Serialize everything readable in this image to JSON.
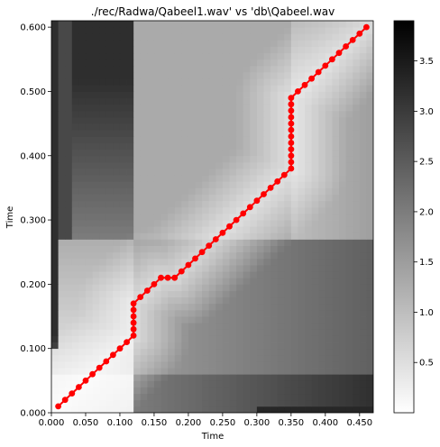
{
  "chart_data": {
    "type": "heatmap",
    "title": "./rec/Radwa/Qabeel1.wav' vs 'db\\Qabeel.wav",
    "xlabel": "Time",
    "ylabel": "Time",
    "xlim": [
      0,
      0.47
    ],
    "ylim": [
      0,
      0.61
    ],
    "xticks": [
      "0.000",
      "0.050",
      "0.100",
      "0.150",
      "0.200",
      "0.250",
      "0.300",
      "0.350",
      "0.400",
      "0.450"
    ],
    "xtick_values": [
      0,
      0.05,
      0.1,
      0.15,
      0.2,
      0.25,
      0.3,
      0.35,
      0.4,
      0.45
    ],
    "yticks": [
      "0.000",
      "0.100",
      "0.200",
      "0.300",
      "0.400",
      "0.500",
      "0.600"
    ],
    "ytick_values": [
      0,
      0.1,
      0.2,
      0.3,
      0.4,
      0.5,
      0.6
    ],
    "colormap": "gray_r",
    "colorbar": {
      "range": [
        0,
        3.9
      ],
      "ticks": [
        "0.5",
        "1.0",
        "1.5",
        "2.0",
        "2.5",
        "3.0",
        "3.5"
      ],
      "tick_values": [
        0.5,
        1.0,
        1.5,
        2.0,
        2.5,
        3.0,
        3.5
      ]
    },
    "path": {
      "name": "alignment path",
      "color": "#ff0000",
      "x": [
        0.01,
        0.02,
        0.03,
        0.04,
        0.05,
        0.06,
        0.07,
        0.08,
        0.09,
        0.1,
        0.11,
        0.12,
        0.12,
        0.12,
        0.12,
        0.12,
        0.12,
        0.13,
        0.14,
        0.15,
        0.16,
        0.17,
        0.18,
        0.19,
        0.2,
        0.21,
        0.22,
        0.23,
        0.24,
        0.25,
        0.26,
        0.27,
        0.28,
        0.29,
        0.3,
        0.31,
        0.32,
        0.33,
        0.34,
        0.35,
        0.35,
        0.35,
        0.35,
        0.35,
        0.35,
        0.35,
        0.35,
        0.35,
        0.35,
        0.35,
        0.35,
        0.36,
        0.37,
        0.38,
        0.39,
        0.4,
        0.41,
        0.42,
        0.43,
        0.44,
        0.45,
        0.46
      ],
      "y": [
        0.01,
        0.02,
        0.03,
        0.04,
        0.05,
        0.06,
        0.07,
        0.08,
        0.09,
        0.1,
        0.11,
        0.12,
        0.13,
        0.14,
        0.15,
        0.16,
        0.17,
        0.18,
        0.19,
        0.2,
        0.21,
        0.21,
        0.21,
        0.22,
        0.23,
        0.24,
        0.25,
        0.26,
        0.27,
        0.28,
        0.29,
        0.3,
        0.31,
        0.32,
        0.33,
        0.34,
        0.35,
        0.36,
        0.37,
        0.38,
        0.39,
        0.4,
        0.41,
        0.42,
        0.43,
        0.44,
        0.45,
        0.46,
        0.47,
        0.48,
        0.49,
        0.5,
        0.51,
        0.52,
        0.53,
        0.54,
        0.55,
        0.56,
        0.57,
        0.58,
        0.59,
        0.6
      ]
    }
  }
}
